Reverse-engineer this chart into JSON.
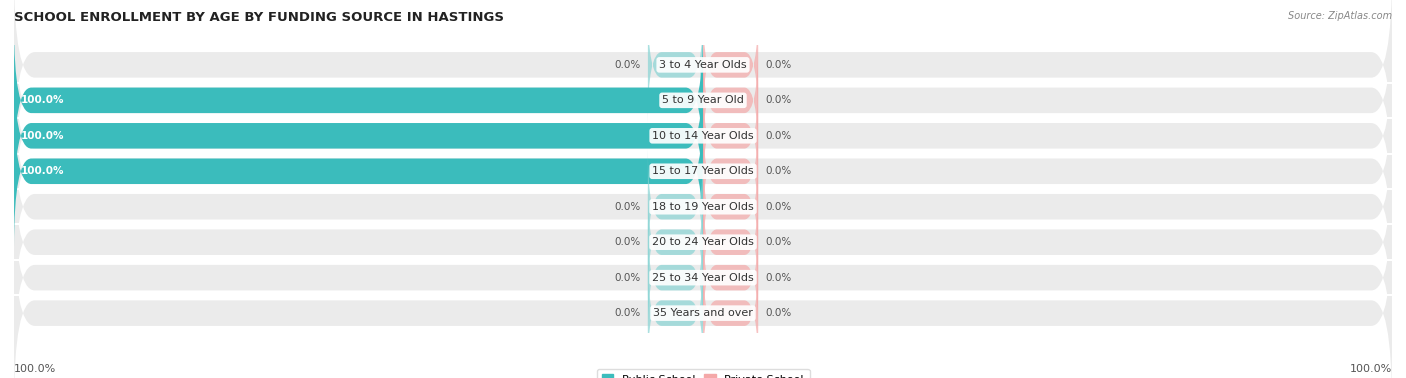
{
  "title": "SCHOOL ENROLLMENT BY AGE BY FUNDING SOURCE IN HASTINGS",
  "source": "Source: ZipAtlas.com",
  "categories": [
    "3 to 4 Year Olds",
    "5 to 9 Year Old",
    "10 to 14 Year Olds",
    "15 to 17 Year Olds",
    "18 to 19 Year Olds",
    "20 to 24 Year Olds",
    "25 to 34 Year Olds",
    "35 Years and over"
  ],
  "public_values": [
    0.0,
    100.0,
    100.0,
    100.0,
    0.0,
    0.0,
    0.0,
    0.0
  ],
  "private_values": [
    0.0,
    0.0,
    0.0,
    0.0,
    0.0,
    0.0,
    0.0,
    0.0
  ],
  "public_color": "#3BBCBC",
  "private_color": "#F4A8A8",
  "public_stub_color": "#88D4D4",
  "private_stub_color": "#F4A8A8",
  "row_bg_color": "#EBEBEB",
  "label_fontsize": 8,
  "title_fontsize": 9.5,
  "value_fontsize": 7.5,
  "legend_fontsize": 8,
  "xlim": [
    -100,
    100
  ],
  "stub_size": 8,
  "bottom_left_label": "100.0%",
  "bottom_right_label": "100.0%"
}
